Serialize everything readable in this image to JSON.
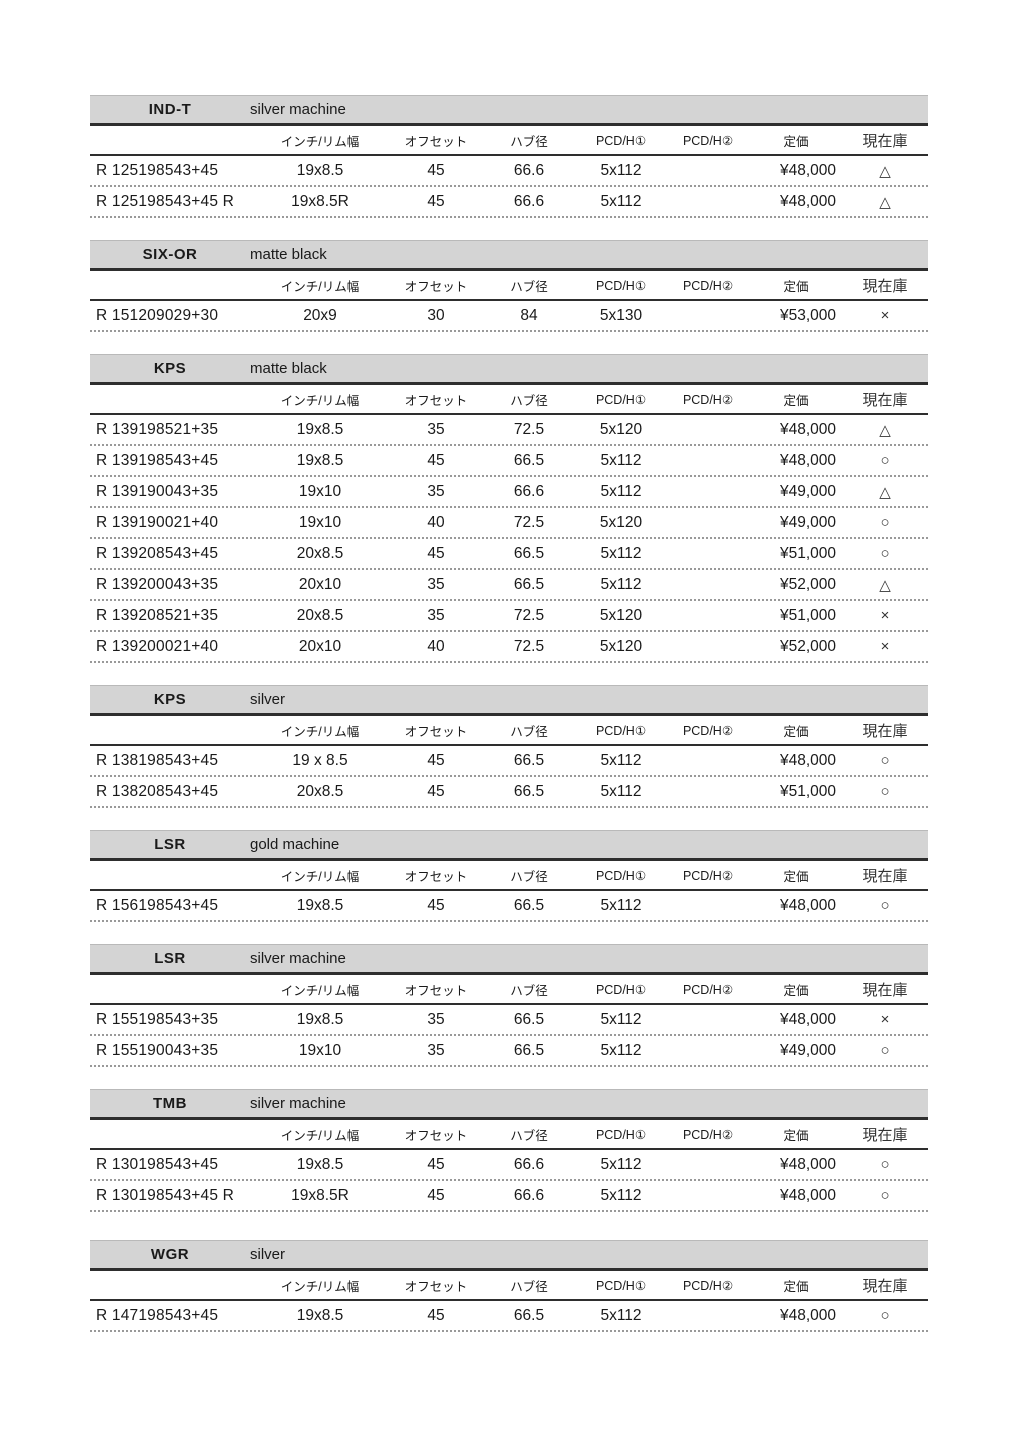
{
  "document": {
    "type": "wheel-price-list"
  },
  "columns": [
    "インチ/リム幅",
    "オフセット",
    "ハブ径",
    "PCD/H①",
    "PCD/H②",
    "定価",
    "現在庫"
  ],
  "colors": {
    "header_bar_bg": "#d4d4d4",
    "rule_dark": "#2e2e2e",
    "row_divider": "#999999",
    "text": "#1a1a1a",
    "page_bg": "#ffffff"
  },
  "stock_symbols": {
    "triangle": "△",
    "circle": "○",
    "cross": "×"
  },
  "tables": [
    {
      "model": "IND-T",
      "finish": "silver machine",
      "rows": [
        {
          "code": "R 125198543+45",
          "size": "19x8.5",
          "offset": "45",
          "hub": "66.6",
          "pcd1": "5x112",
          "pcd2": "",
          "price": "¥48,000",
          "stock": "△"
        },
        {
          "code": "R 125198543+45 R",
          "size": "19x8.5R",
          "offset": "45",
          "hub": "66.6",
          "pcd1": "5x112",
          "pcd2": "",
          "price": "¥48,000",
          "stock": "△"
        }
      ]
    },
    {
      "model": "SIX-OR",
      "finish": "matte black",
      "rows": [
        {
          "code": "R 151209029+30",
          "size": "20x9",
          "offset": "30",
          "hub": "84",
          "pcd1": "5x130",
          "pcd2": "",
          "price": "¥53,000",
          "stock": "×"
        }
      ]
    },
    {
      "model": "KPS",
      "finish": "matte black",
      "rows": [
        {
          "code": "R 139198521+35",
          "size": "19x8.5",
          "offset": "35",
          "hub": "72.5",
          "pcd1": "5x120",
          "pcd2": "",
          "price": "¥48,000",
          "stock": "△"
        },
        {
          "code": "R 139198543+45",
          "size": "19x8.5",
          "offset": "45",
          "hub": "66.5",
          "pcd1": "5x112",
          "pcd2": "",
          "price": "¥48,000",
          "stock": "○"
        },
        {
          "code": "R 139190043+35",
          "size": "19x10",
          "offset": "35",
          "hub": "66.6",
          "pcd1": "5x112",
          "pcd2": "",
          "price": "¥49,000",
          "stock": "△"
        },
        {
          "code": "R 139190021+40",
          "size": "19x10",
          "offset": "40",
          "hub": "72.5",
          "pcd1": "5x120",
          "pcd2": "",
          "price": "¥49,000",
          "stock": "○"
        },
        {
          "code": "R 139208543+45",
          "size": "20x8.5",
          "offset": "45",
          "hub": "66.5",
          "pcd1": "5x112",
          "pcd2": "",
          "price": "¥51,000",
          "stock": "○"
        },
        {
          "code": "R 139200043+35",
          "size": "20x10",
          "offset": "35",
          "hub": "66.5",
          "pcd1": "5x112",
          "pcd2": "",
          "price": "¥52,000",
          "stock": "△"
        },
        {
          "code": "R 139208521+35",
          "size": "20x8.5",
          "offset": "35",
          "hub": "72.5",
          "pcd1": "5x120",
          "pcd2": "",
          "price": "¥51,000",
          "stock": "×"
        },
        {
          "code": "R 139200021+40",
          "size": "20x10",
          "offset": "40",
          "hub": "72.5",
          "pcd1": "5x120",
          "pcd2": "",
          "price": "¥52,000",
          "stock": "×"
        }
      ]
    },
    {
      "model": "KPS",
      "finish": "silver",
      "rows": [
        {
          "code": "R 138198543+45",
          "size": "19 x 8.5",
          "offset": "45",
          "hub": "66.5",
          "pcd1": "5x112",
          "pcd2": "",
          "price": "¥48,000",
          "stock": "○"
        },
        {
          "code": "R 138208543+45",
          "size": "20x8.5",
          "offset": "45",
          "hub": "66.5",
          "pcd1": "5x112",
          "pcd2": "",
          "price": "¥51,000",
          "stock": "○"
        }
      ]
    },
    {
      "model": "LSR",
      "finish": "gold machine",
      "rows": [
        {
          "code": "R 156198543+45",
          "size": "19x8.5",
          "offset": "45",
          "hub": "66.5",
          "pcd1": "5x112",
          "pcd2": "",
          "price": "¥48,000",
          "stock": "○"
        }
      ]
    },
    {
      "model": "LSR",
      "finish": "silver machine",
      "rows": [
        {
          "code": "R 155198543+35",
          "size": "19x8.5",
          "offset": "35",
          "hub": "66.5",
          "pcd1": "5x112",
          "pcd2": "",
          "price": "¥48,000",
          "stock": "×"
        },
        {
          "code": "R 155190043+35",
          "size": "19x10",
          "offset": "35",
          "hub": "66.5",
          "pcd1": "5x112",
          "pcd2": "",
          "price": "¥49,000",
          "stock": "○"
        }
      ]
    },
    {
      "model": "TMB",
      "finish": "silver machine",
      "rows": [
        {
          "code": "R 130198543+45",
          "size": "19x8.5",
          "offset": "45",
          "hub": "66.6",
          "pcd1": "5x112",
          "pcd2": "",
          "price": "¥48,000",
          "stock": "○"
        },
        {
          "code": "R 130198543+45 R",
          "size": "19x8.5R",
          "offset": "45",
          "hub": "66.6",
          "pcd1": "5x112",
          "pcd2": "",
          "price": "¥48,000",
          "stock": "○"
        }
      ]
    },
    {
      "model": "WGR",
      "finish": "silver",
      "rows": [
        {
          "code": "R 147198543+45",
          "size": "19x8.5",
          "offset": "45",
          "hub": "66.5",
          "pcd1": "5x112",
          "pcd2": "",
          "price": "¥48,000",
          "stock": "○"
        }
      ]
    }
  ]
}
